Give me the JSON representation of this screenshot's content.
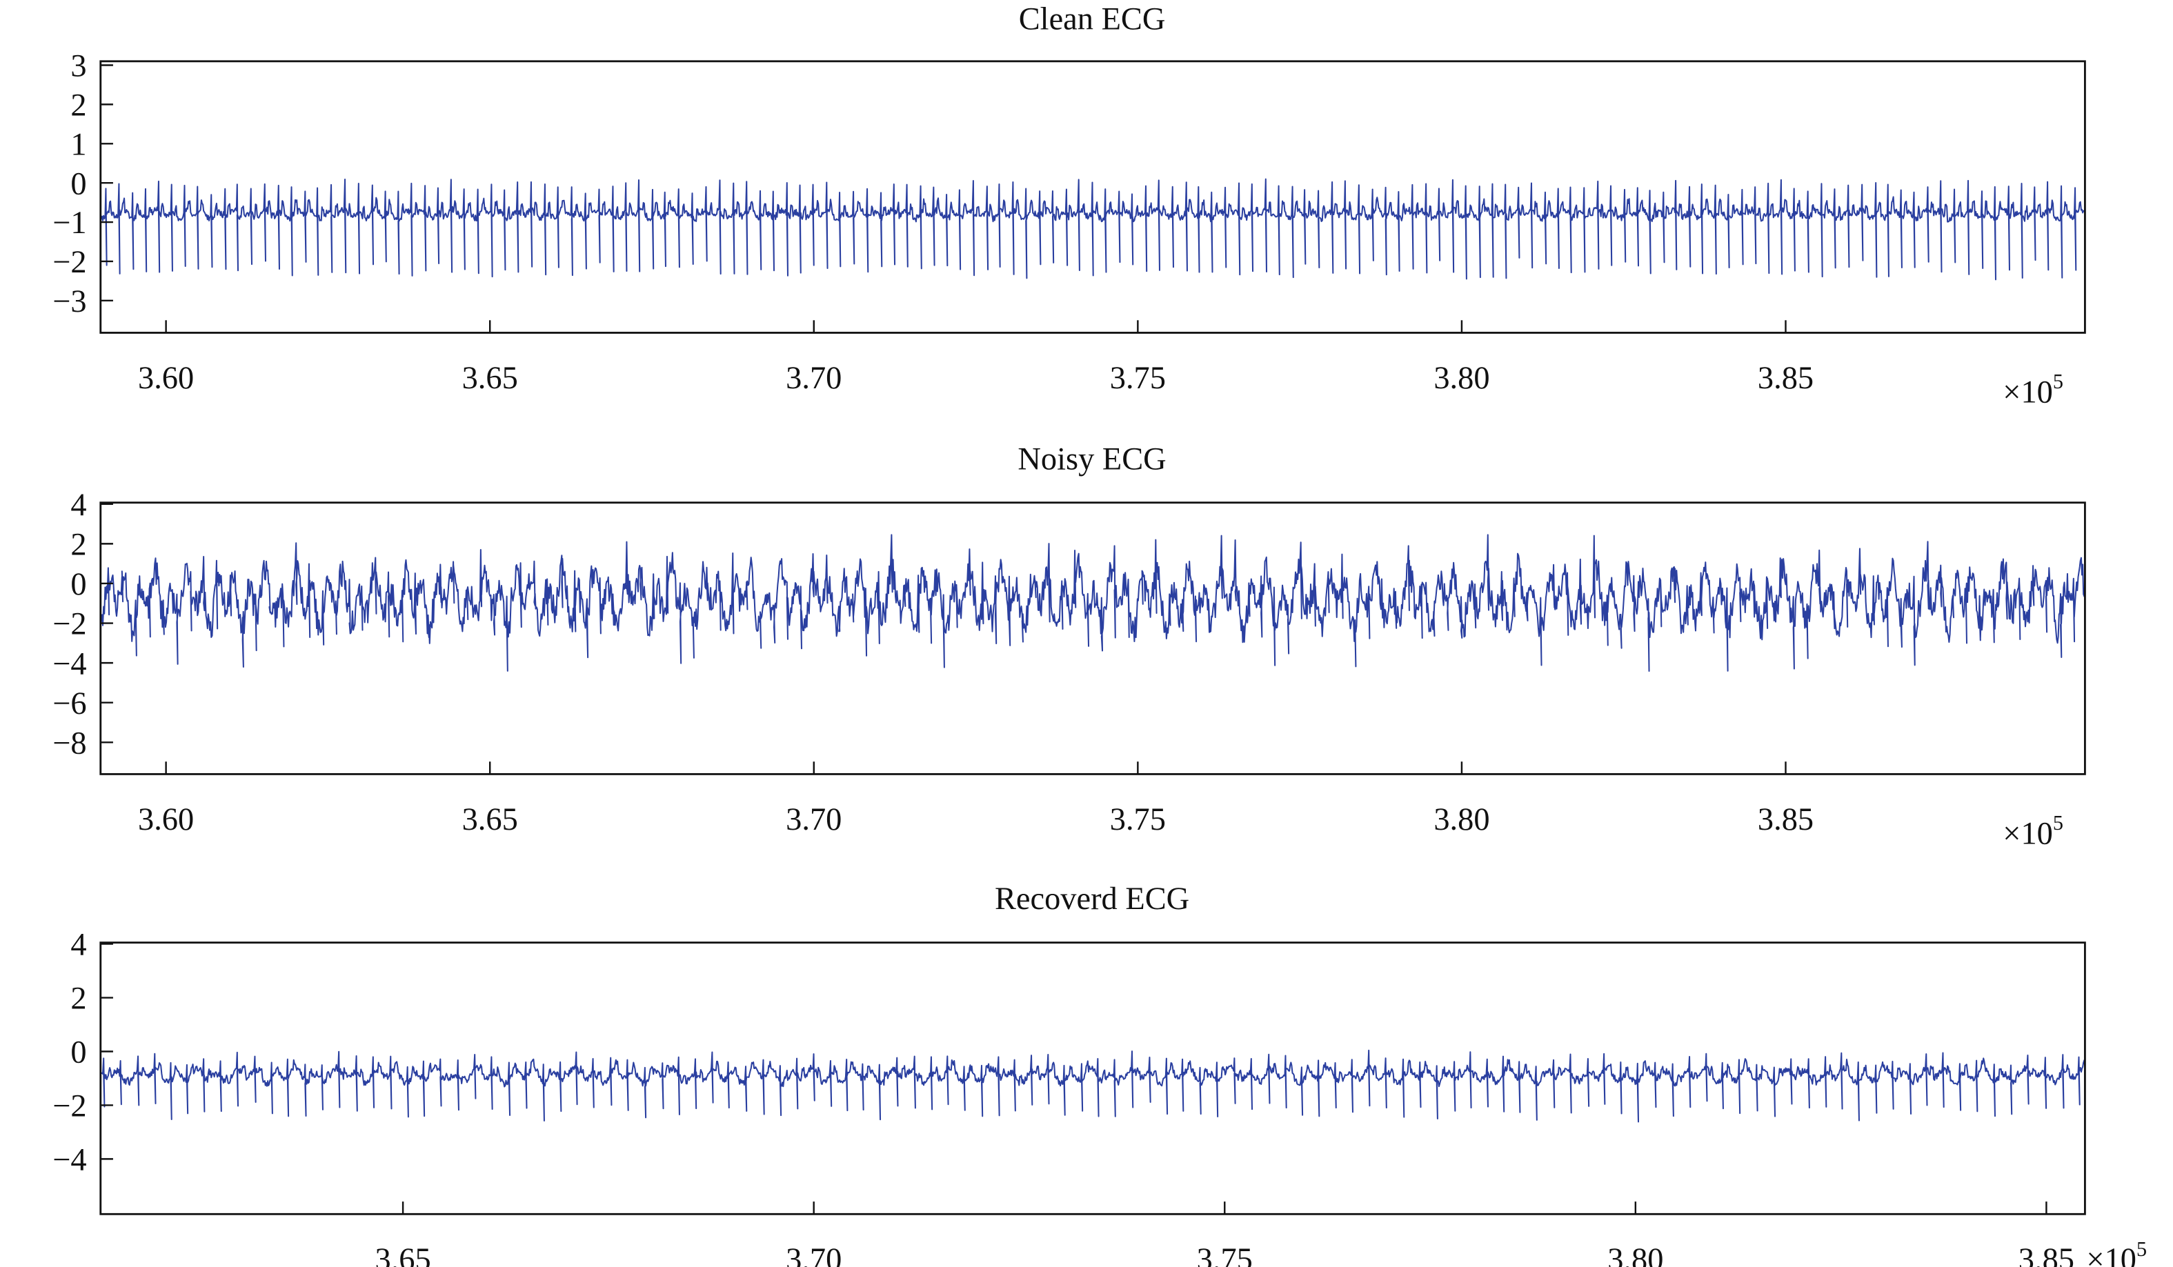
{
  "chart_data": [
    {
      "type": "line",
      "title": "Clean ECG",
      "xlabel": "",
      "ylabel": "",
      "x_multiplier": "×10",
      "x_multiplier_exp": "5",
      "xlim": [
        3.5899,
        3.8962
      ],
      "ylim": [
        -3.82,
        3.1
      ],
      "xticks": [
        "3.60",
        "3.65",
        "3.70",
        "3.75",
        "3.80",
        "3.85"
      ],
      "xtick_values": [
        3.6,
        3.65,
        3.7,
        3.75,
        3.8,
        3.85
      ],
      "yticks": [
        "3",
        "2",
        "1",
        "0",
        "−1",
        "−2",
        "−3"
      ],
      "ytick_values": [
        3,
        2,
        1,
        0,
        -1,
        -2,
        -3
      ],
      "series": [
        {
          "name": "Clean ECG",
          "color": "#2a3fa0",
          "baseline": -0.8,
          "r_peak": 0.7,
          "s_trough": -2.2,
          "beat_interval": 0.00205,
          "noise": 0.08,
          "wander_amp": 0.1,
          "seed": 11
        }
      ],
      "grid": false
    },
    {
      "type": "line",
      "title": "Noisy ECG",
      "xlabel": "",
      "ylabel": "",
      "x_multiplier": "×10",
      "x_multiplier_exp": "5",
      "xlim": [
        3.5899,
        3.8962
      ],
      "ylim": [
        -9.6,
        4.07
      ],
      "xticks": [
        "3.60",
        "3.65",
        "3.70",
        "3.75",
        "3.80",
        "3.85"
      ],
      "xtick_values": [
        3.6,
        3.65,
        3.7,
        3.75,
        3.8,
        3.85
      ],
      "yticks": [
        "4",
        "2",
        "0",
        "−2",
        "−4",
        "−6",
        "−8"
      ],
      "ytick_values": [
        4,
        2,
        0,
        -2,
        -4,
        -6,
        -8
      ],
      "series": [
        {
          "name": "Noisy ECG",
          "color": "#2a3fa0",
          "baseline": -0.8,
          "r_peak": 0.7,
          "s_trough": -2.2,
          "beat_interval": 0.00205,
          "noise": 0.7,
          "wander_amp": 1.3,
          "seed": 23
        }
      ],
      "grid": false
    },
    {
      "type": "line",
      "title": "Recoverd ECG",
      "xlabel": "",
      "ylabel": "",
      "x_multiplier": "×10",
      "x_multiplier_exp": "5",
      "xlim": [
        3.6132,
        3.8547
      ],
      "ylim": [
        -6.05,
        4.05
      ],
      "xticks": [
        "3.65",
        "3.70",
        "3.75",
        "3.80",
        "3.85"
      ],
      "xtick_values": [
        3.65,
        3.7,
        3.75,
        3.8,
        3.85
      ],
      "yticks": [
        "4",
        "2",
        "0",
        "−2",
        "−4"
      ],
      "ytick_values": [
        4,
        2,
        0,
        -2,
        -4
      ],
      "series": [
        {
          "name": "Recoverd ECG",
          "color": "#2a3fa0",
          "baseline": -0.9,
          "r_peak": 0.6,
          "s_trough": -2.2,
          "beat_interval": 0.00205,
          "noise": 0.12,
          "wander_amp": 0.25,
          "seed": 37
        }
      ],
      "grid": false
    }
  ]
}
